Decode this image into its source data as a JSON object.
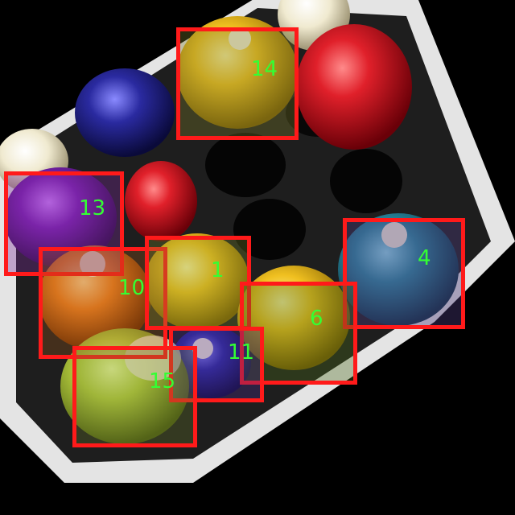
{
  "image": {
    "description_kind": "photo of billiard balls in a foam tray with numbered detection boxes",
    "colors": {
      "box_border": "#ff1a1a",
      "label_text": "#33ff33",
      "background": "#000000"
    }
  },
  "annotations": [
    {
      "id": "14",
      "label": "14",
      "tint": "#7a7a2a"
    },
    {
      "id": "13",
      "label": "13",
      "tint": "#7a2a9a"
    },
    {
      "id": "10",
      "label": "10",
      "tint": "#a05a1a"
    },
    {
      "id": "1",
      "label": "1",
      "tint": "#7a8a2a"
    },
    {
      "id": "4",
      "label": "4",
      "tint": "#4a3a7a"
    },
    {
      "id": "6",
      "label": "6",
      "tint": "#4a6a1a"
    },
    {
      "id": "11",
      "label": "11",
      "tint": "#4a2a8a"
    },
    {
      "id": "15",
      "label": "15",
      "tint": "#6a7a2a"
    }
  ]
}
